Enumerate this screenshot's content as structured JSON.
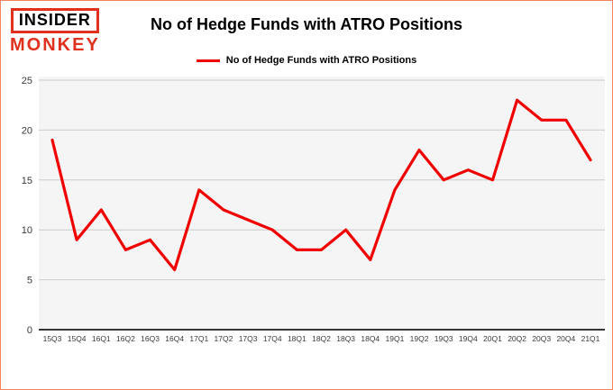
{
  "logo": {
    "top": "INSIDER",
    "bottom": "MONKEY"
  },
  "header": {
    "title": "No of Hedge Funds with ATRO Positions"
  },
  "legend": {
    "label": "No of Hedge Funds with ATRO Positions"
  },
  "chart_data": {
    "type": "line",
    "title": "No of Hedge Funds with ATRO Positions",
    "categories": [
      "15Q3",
      "15Q4",
      "16Q1",
      "16Q2",
      "16Q3",
      "16Q4",
      "17Q1",
      "17Q2",
      "17Q3",
      "17Q4",
      "18Q1",
      "18Q2",
      "18Q3",
      "18Q4",
      "19Q1",
      "19Q2",
      "19Q3",
      "19Q4",
      "20Q1",
      "20Q2",
      "20Q3",
      "20Q4",
      "21Q1"
    ],
    "values": [
      19,
      9,
      12,
      8,
      9,
      6,
      14,
      12,
      11,
      10,
      8,
      8,
      10,
      7,
      14,
      18,
      15,
      16,
      15,
      23,
      21,
      21,
      17
    ],
    "xlabel": "",
    "ylabel": "",
    "ylim": [
      0,
      25
    ],
    "yticks": [
      0,
      5,
      10,
      15,
      20,
      25
    ],
    "line_color": "#f10000",
    "grid": true,
    "grid_color": "#cccccc",
    "plot_bg": "#f5f5f5",
    "legend_position": "top"
  }
}
